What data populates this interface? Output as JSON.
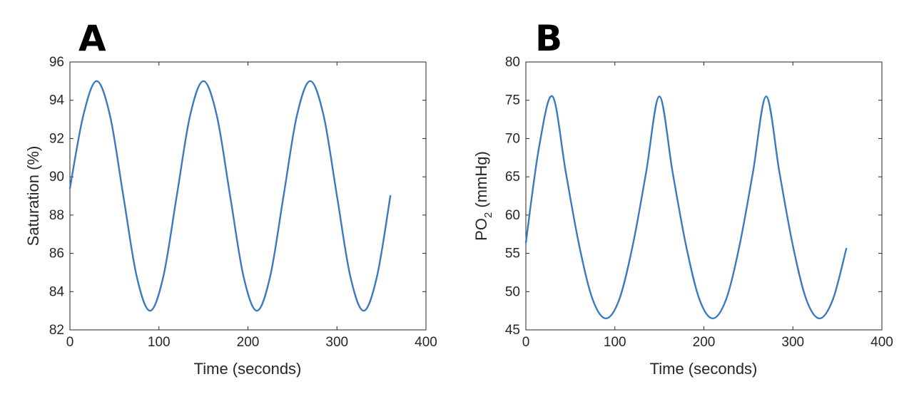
{
  "colors": {
    "series": "#3a7bbf",
    "axis": "#262626",
    "background": "#ffffff"
  },
  "chart_data": [
    {
      "panel_label": "A",
      "type": "line",
      "xlabel": "Time (seconds)",
      "ylabel": "Saturation (%)",
      "xlim": [
        0,
        400
      ],
      "ylim": [
        82,
        96
      ],
      "xticks": [
        0,
        100,
        200,
        300,
        400
      ],
      "yticks": [
        82,
        84,
        86,
        88,
        90,
        92,
        94,
        96
      ],
      "grid": false,
      "series": [
        {
          "x": [
            0,
            15,
            30,
            45,
            60,
            75,
            90,
            105,
            120,
            135,
            150,
            165,
            180,
            195,
            210,
            225,
            240,
            255,
            270,
            285,
            300,
            315,
            330,
            345,
            360
          ],
          "y": [
            89.4,
            93.2,
            95.0,
            93.2,
            89.0,
            84.8,
            83.0,
            84.8,
            89.0,
            93.2,
            95.0,
            93.2,
            89.0,
            84.8,
            83.0,
            84.8,
            89.0,
            93.2,
            95.0,
            93.2,
            89.0,
            84.8,
            83.0,
            84.8,
            89.0
          ]
        }
      ]
    },
    {
      "panel_label": "B",
      "type": "line",
      "xlabel": "Time (seconds)",
      "ylabel_main": "PO",
      "ylabel_sub": "2",
      "ylabel_rest": " (mmHg)",
      "xlim": [
        0,
        400
      ],
      "ylim": [
        45,
        80
      ],
      "xticks": [
        0,
        100,
        200,
        300,
        400
      ],
      "yticks": [
        45,
        50,
        55,
        60,
        65,
        70,
        75,
        80
      ],
      "grid": false,
      "series": [
        {
          "x": [
            0,
            15,
            30,
            45,
            60,
            75,
            90,
            105,
            120,
            135,
            150,
            165,
            180,
            195,
            210,
            225,
            240,
            255,
            270,
            285,
            300,
            315,
            330,
            345,
            360
          ],
          "y": [
            56.4,
            69.0,
            75.5,
            65.5,
            56.0,
            49.0,
            46.5,
            49.0,
            56.0,
            65.5,
            75.5,
            65.5,
            56.0,
            49.0,
            46.5,
            49.0,
            56.0,
            65.5,
            75.5,
            65.5,
            56.0,
            49.0,
            46.5,
            49.0,
            55.6
          ]
        }
      ]
    }
  ]
}
